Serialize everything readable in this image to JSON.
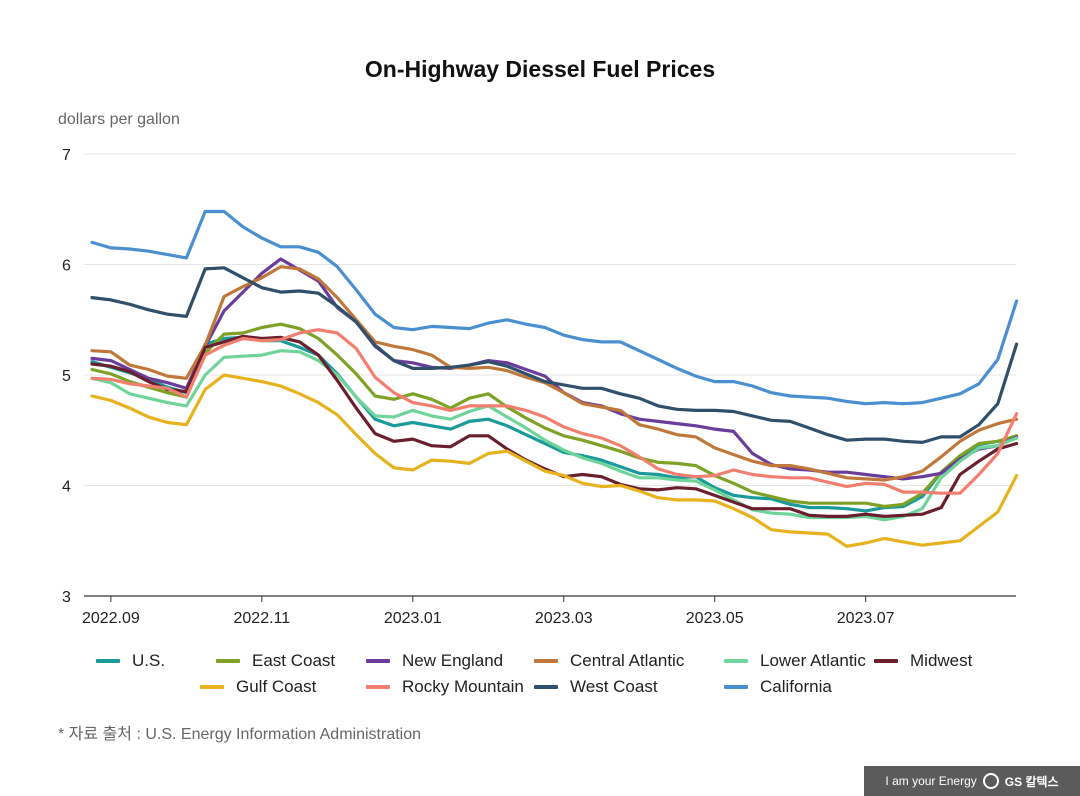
{
  "chart_data": {
    "type": "line",
    "title": "On-Highway Diessel Fuel Prices",
    "ylabel": "dollars per gallon",
    "xlabel": "",
    "ylim": [
      3,
      7
    ],
    "yticks": [
      "3",
      "4",
      "5",
      "6",
      "7"
    ],
    "xticks": [
      {
        "label": "2022.09",
        "index": 1
      },
      {
        "label": "2022.11",
        "index": 9
      },
      {
        "label": "2023.01",
        "index": 17
      },
      {
        "label": "2023.03",
        "index": 25
      },
      {
        "label": "2023.05",
        "index": 33
      },
      {
        "label": "2023.07",
        "index": 41
      }
    ],
    "n_points": 50,
    "legend_position": "bottom",
    "source_note": "* 자료 출처 : U.S. Energy Information Administration",
    "series": [
      {
        "name": "U.S.",
        "color": "#1a9a9a",
        "values": [
          5.12,
          5.07,
          5.02,
          4.96,
          4.89,
          4.84,
          5.28,
          5.33,
          5.34,
          5.31,
          5.31,
          5.25,
          5.18,
          5.01,
          4.8,
          4.6,
          4.54,
          4.57,
          4.54,
          4.51,
          4.58,
          4.6,
          4.54,
          4.46,
          4.38,
          4.3,
          4.27,
          4.23,
          4.17,
          4.11,
          4.1,
          4.07,
          4.08,
          3.98,
          3.91,
          3.89,
          3.88,
          3.83,
          3.8,
          3.8,
          3.79,
          3.77,
          3.8,
          3.81,
          3.9,
          4.12,
          4.25,
          4.37,
          4.4,
          4.43
        ]
      },
      {
        "name": "East Coast",
        "color": "#7fa126",
        "values": [
          5.05,
          5.01,
          4.94,
          4.89,
          4.84,
          4.8,
          5.2,
          5.37,
          5.38,
          5.43,
          5.46,
          5.42,
          5.33,
          5.18,
          5.01,
          4.81,
          4.78,
          4.83,
          4.78,
          4.7,
          4.79,
          4.83,
          4.71,
          4.61,
          4.52,
          4.45,
          4.41,
          4.36,
          4.31,
          4.25,
          4.21,
          4.2,
          4.18,
          4.09,
          4.02,
          3.94,
          3.9,
          3.86,
          3.84,
          3.84,
          3.84,
          3.84,
          3.81,
          3.83,
          3.93,
          4.12,
          4.27,
          4.38,
          4.4,
          4.45
        ]
      },
      {
        "name": "New England",
        "color": "#6a3d9a",
        "values": [
          5.15,
          5.13,
          5.05,
          4.97,
          4.93,
          4.88,
          5.26,
          5.58,
          5.75,
          5.92,
          6.05,
          5.95,
          5.85,
          5.61,
          5.48,
          5.26,
          5.13,
          5.11,
          5.07,
          5.06,
          5.09,
          5.13,
          5.11,
          5.05,
          4.99,
          4.84,
          4.75,
          4.72,
          4.65,
          4.6,
          4.58,
          4.56,
          4.54,
          4.51,
          4.49,
          4.29,
          4.19,
          4.15,
          4.14,
          4.12,
          4.12,
          4.1,
          4.08,
          4.06,
          4.08,
          4.11,
          4.24,
          4.33,
          4.36,
          4.44
        ]
      },
      {
        "name": "Central Atlantic",
        "color": "#c0783a",
        "values": [
          5.22,
          5.21,
          5.09,
          5.05,
          4.99,
          4.97,
          5.27,
          5.71,
          5.8,
          5.88,
          5.98,
          5.96,
          5.87,
          5.7,
          5.5,
          5.3,
          5.26,
          5.23,
          5.18,
          5.07,
          5.06,
          5.07,
          5.04,
          4.98,
          4.93,
          4.84,
          4.74,
          4.71,
          4.68,
          4.55,
          4.51,
          4.46,
          4.44,
          4.34,
          4.28,
          4.22,
          4.18,
          4.18,
          4.15,
          4.11,
          4.07,
          4.06,
          4.05,
          4.08,
          4.13,
          4.26,
          4.4,
          4.5,
          4.56,
          4.6
        ]
      },
      {
        "name": "Lower Atlantic",
        "color": "#6fd49a",
        "values": [
          4.97,
          4.93,
          4.83,
          4.79,
          4.75,
          4.72,
          5.0,
          5.16,
          5.17,
          5.18,
          5.22,
          5.21,
          5.13,
          5.0,
          4.8,
          4.63,
          4.62,
          4.68,
          4.63,
          4.6,
          4.67,
          4.72,
          4.62,
          4.52,
          4.41,
          4.32,
          4.25,
          4.2,
          4.13,
          4.07,
          4.07,
          4.05,
          4.04,
          3.96,
          3.87,
          3.78,
          3.75,
          3.74,
          3.71,
          3.71,
          3.71,
          3.72,
          3.69,
          3.72,
          3.79,
          4.07,
          4.22,
          4.34,
          4.36,
          4.43
        ]
      },
      {
        "name": "Midwest",
        "color": "#6a1f2e",
        "values": [
          5.1,
          5.08,
          5.03,
          4.94,
          4.87,
          4.85,
          5.25,
          5.3,
          5.35,
          5.33,
          5.34,
          5.3,
          5.18,
          4.95,
          4.7,
          4.47,
          4.4,
          4.42,
          4.36,
          4.35,
          4.45,
          4.45,
          4.33,
          4.23,
          4.15,
          4.08,
          4.1,
          4.08,
          4.01,
          3.97,
          3.96,
          3.98,
          3.97,
          3.91,
          3.85,
          3.79,
          3.79,
          3.79,
          3.73,
          3.72,
          3.72,
          3.74,
          3.72,
          3.73,
          3.74,
          3.8,
          4.1,
          4.22,
          4.33,
          4.38
        ]
      },
      {
        "name": "Gulf Coast",
        "color": "#e6b21e",
        "values": [
          4.81,
          4.77,
          4.7,
          4.62,
          4.57,
          4.55,
          4.87,
          5.0,
          4.97,
          4.94,
          4.9,
          4.83,
          4.75,
          4.64,
          4.46,
          4.29,
          4.16,
          4.14,
          4.23,
          4.22,
          4.2,
          4.29,
          4.31,
          4.22,
          4.13,
          4.09,
          4.02,
          3.99,
          4.0,
          3.95,
          3.89,
          3.87,
          3.87,
          3.86,
          3.79,
          3.71,
          3.6,
          3.58,
          3.57,
          3.56,
          3.45,
          3.48,
          3.52,
          3.49,
          3.46,
          3.48,
          3.5,
          3.63,
          3.76,
          4.09
        ]
      },
      {
        "name": "Rocky Mountain",
        "color": "#f07f70",
        "values": [
          4.97,
          4.96,
          4.92,
          4.9,
          4.88,
          4.8,
          5.18,
          5.27,
          5.33,
          5.31,
          5.32,
          5.38,
          5.41,
          5.38,
          5.24,
          4.98,
          4.84,
          4.75,
          4.72,
          4.68,
          4.72,
          4.72,
          4.72,
          4.68,
          4.62,
          4.53,
          4.47,
          4.43,
          4.36,
          4.26,
          4.15,
          4.1,
          4.08,
          4.09,
          4.14,
          4.1,
          4.08,
          4.07,
          4.07,
          4.03,
          3.99,
          4.02,
          4.01,
          3.94,
          3.94,
          3.93,
          3.93,
          4.1,
          4.29,
          4.65
        ]
      },
      {
        "name": "West Coast",
        "color": "#2f4f6b",
        "values": [
          5.7,
          5.68,
          5.64,
          5.59,
          5.55,
          5.53,
          5.96,
          5.97,
          5.88,
          5.79,
          5.75,
          5.76,
          5.74,
          5.62,
          5.48,
          5.27,
          5.13,
          5.06,
          5.06,
          5.07,
          5.09,
          5.12,
          5.08,
          5.01,
          4.94,
          4.91,
          4.88,
          4.88,
          4.83,
          4.79,
          4.72,
          4.69,
          4.68,
          4.68,
          4.67,
          4.63,
          4.59,
          4.58,
          4.52,
          4.46,
          4.41,
          4.42,
          4.42,
          4.4,
          4.39,
          4.44,
          4.44,
          4.55,
          4.74,
          5.28
        ]
      },
      {
        "name": "California",
        "color": "#4a90d0",
        "values": [
          6.2,
          6.15,
          6.14,
          6.12,
          6.09,
          6.06,
          6.48,
          6.48,
          6.34,
          6.24,
          6.16,
          6.16,
          6.11,
          5.98,
          5.77,
          5.55,
          5.43,
          5.41,
          5.44,
          5.43,
          5.42,
          5.47,
          5.5,
          5.46,
          5.43,
          5.36,
          5.32,
          5.3,
          5.3,
          5.22,
          5.14,
          5.06,
          4.99,
          4.94,
          4.94,
          4.9,
          4.84,
          4.81,
          4.8,
          4.79,
          4.76,
          4.74,
          4.75,
          4.74,
          4.75,
          4.79,
          4.83,
          4.92,
          5.14,
          5.67
        ]
      }
    ]
  }
}
